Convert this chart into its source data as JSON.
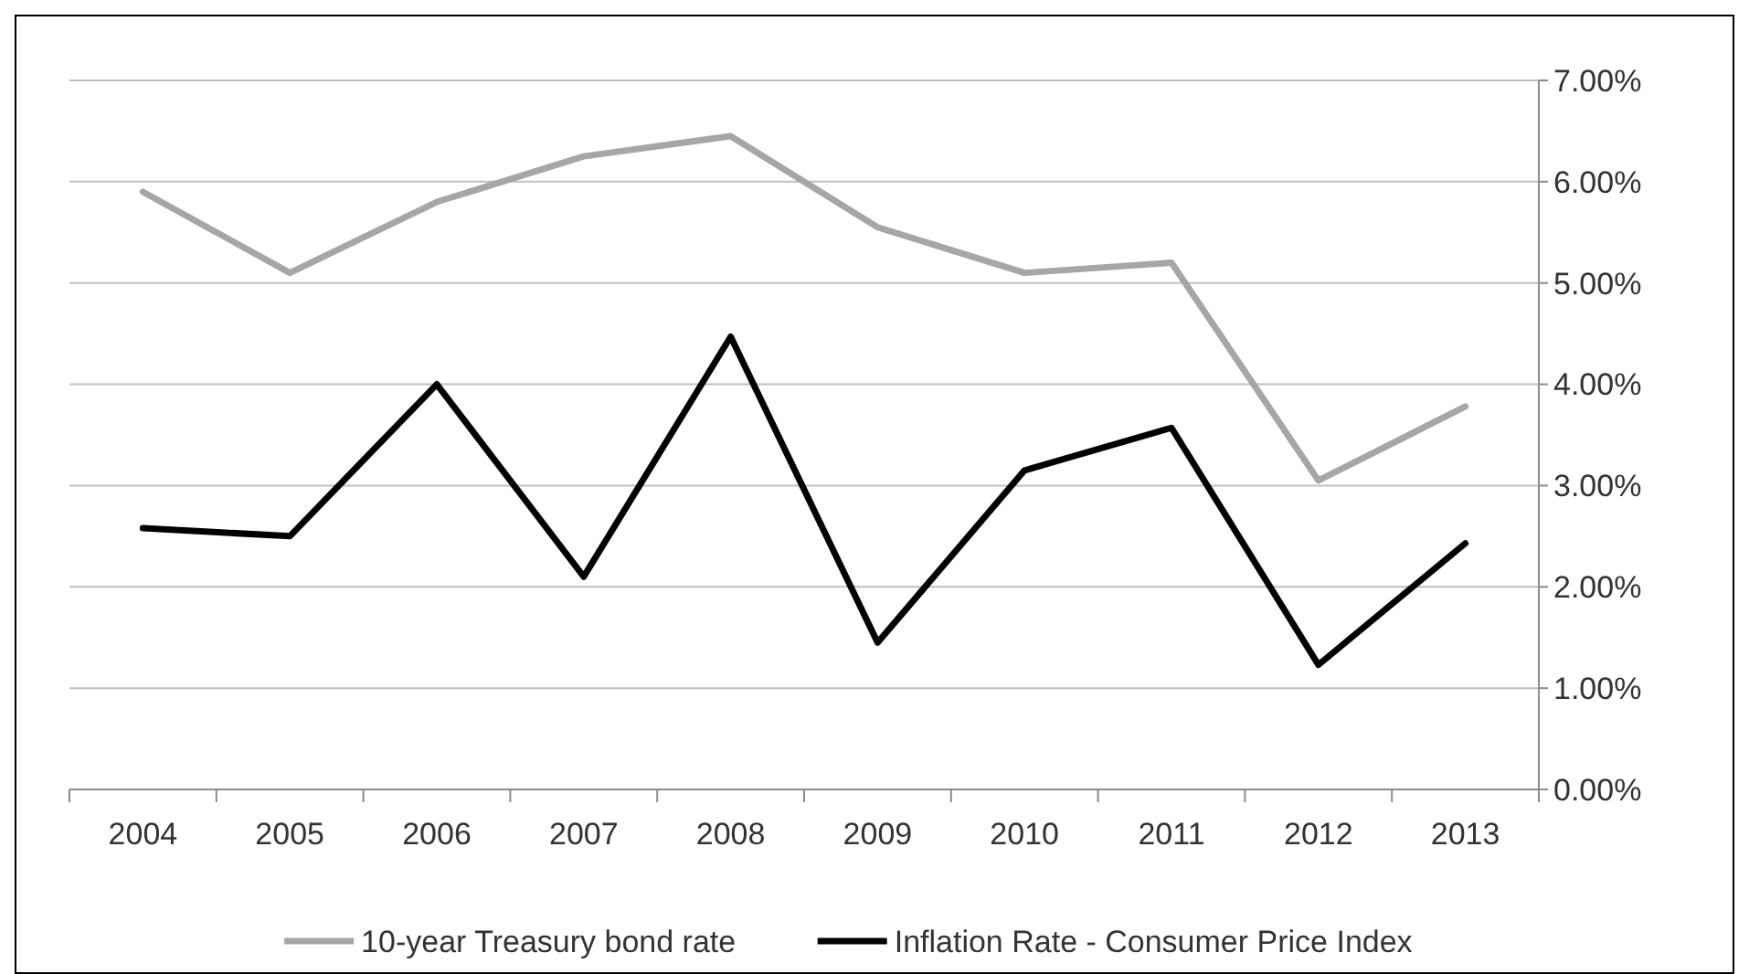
{
  "chart_data": {
    "type": "line",
    "categories": [
      "2004",
      "2005",
      "2006",
      "2007",
      "2008",
      "2009",
      "2010",
      "2011",
      "2012",
      "2013"
    ],
    "series": [
      {
        "name": "10-year Treasury bond rate",
        "color": "#a6a6a6",
        "values": [
          5.9,
          5.1,
          5.8,
          6.25,
          6.45,
          5.55,
          5.1,
          5.2,
          3.05,
          3.78
        ]
      },
      {
        "name": "Inflation Rate - Consumer Price Index",
        "color": "#000000",
        "values": [
          2.58,
          2.5,
          4.0,
          2.1,
          4.47,
          1.45,
          3.15,
          3.57,
          1.23,
          2.43
        ]
      }
    ],
    "ylim": [
      0,
      7
    ],
    "yticks": [
      {
        "value": 0,
        "label": "0.00%"
      },
      {
        "value": 1,
        "label": "1.00%"
      },
      {
        "value": 2,
        "label": "2.00%"
      },
      {
        "value": 3,
        "label": "3.00%"
      },
      {
        "value": 4,
        "label": "4.00%"
      },
      {
        "value": 5,
        "label": "5.00%"
      },
      {
        "value": 6,
        "label": "6.00%"
      },
      {
        "value": 7,
        "label": "7.00%"
      }
    ],
    "grid": "y",
    "legend": "bottom",
    "marker": "none",
    "line_style": "solid"
  }
}
